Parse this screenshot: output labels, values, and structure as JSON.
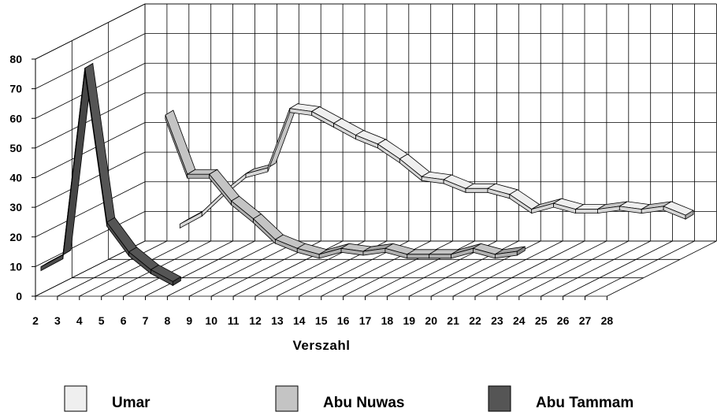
{
  "chart_data": {
    "type": "line",
    "style": "3d-ribbon",
    "title": "",
    "xlabel": "Verszahl",
    "ylabel": "",
    "categories": [
      "2",
      "3",
      "4",
      "5",
      "6",
      "7",
      "8",
      "9",
      "10",
      "11",
      "12",
      "13",
      "14",
      "15",
      "16",
      "17",
      "18",
      "19",
      "20",
      "21",
      "22",
      "23",
      "24",
      "25",
      "26",
      "27",
      "28"
    ],
    "y_ticks": [
      "0",
      "10",
      "20",
      "30",
      "40",
      "50",
      "60",
      "70",
      "80"
    ],
    "ylim": [
      0,
      80
    ],
    "grid": true,
    "legend_position": "bottom",
    "series": [
      {
        "name": "Umar",
        "color": "#efefef",
        "values": [
          null,
          null,
          null,
          11,
          15,
          22,
          28,
          30,
          50,
          49,
          45,
          41,
          38,
          33,
          27,
          26,
          23,
          23,
          21,
          16,
          18,
          16,
          16,
          17,
          16,
          17,
          14
        ]
      },
      {
        "name": "Abu Nuwas",
        "color": "#c4c4c4",
        "values": [
          null,
          null,
          null,
          null,
          54,
          34,
          34,
          25,
          19,
          12,
          9,
          7,
          9,
          8,
          9,
          7,
          7,
          7,
          9,
          7,
          8,
          null,
          null,
          null,
          null,
          null,
          null
        ]
      },
      {
        "name": "Abu Tammam",
        "color": "#555555",
        "values": [
          9,
          13,
          76,
          24,
          14,
          8,
          4,
          null,
          null,
          null,
          null,
          null,
          null,
          null,
          null,
          null,
          null,
          null,
          null,
          null,
          null,
          null,
          null,
          null,
          null,
          null,
          null
        ]
      }
    ]
  }
}
